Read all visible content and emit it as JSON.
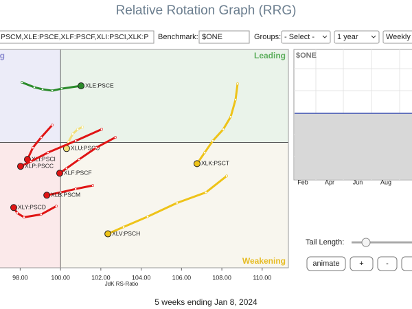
{
  "header": {
    "title": "Relative Rotation Graph (RRG)"
  },
  "controls": {
    "symbols": "PSCM,XLE:PSCE,XLF:PSCF,XLI:PSCI,XLK:P",
    "benchmark_label": "Benchmark:",
    "benchmark": "$ONE",
    "groups_label": "Groups:",
    "groups": "- Select -",
    "period": "1 year",
    "frequency": "Weekly"
  },
  "chart_data": {
    "type": "scatter",
    "xlabel": "JdK RS-Ratio",
    "quadrants": {
      "leading": "Leading",
      "weakening": "Weakening",
      "improving": "Improving"
    },
    "xlim": [
      97,
      111.3
    ],
    "ylim": [
      93.8,
      104.6
    ],
    "xticks": [
      {
        "value": 98,
        "label": "98.00"
      },
      {
        "value": 100,
        "label": "100.00"
      },
      {
        "value": 102,
        "label": "102.00"
      },
      {
        "value": 104,
        "label": "104.00"
      },
      {
        "value": 106,
        "label": "106.00"
      },
      {
        "value": 108,
        "label": "108.00"
      },
      {
        "value": 110,
        "label": "110.00"
      }
    ],
    "series": [
      {
        "name": "XLE:PSCE",
        "color": "#2a8a2a",
        "x": [
          98.09,
          98.7,
          99.11,
          99.59,
          100.06,
          101.02
        ],
        "values": [
          102.97,
          102.73,
          102.63,
          102.56,
          102.66,
          102.8
        ]
      },
      {
        "name": "XLK:PSCT",
        "color": "#eec318",
        "x": [
          108.78,
          108.68,
          108.44,
          108.07,
          107.55,
          107.15,
          106.77
        ],
        "values": [
          102.9,
          102.12,
          101.27,
          100.65,
          100.08,
          99.5,
          98.95
        ]
      },
      {
        "name": "XLV:PSCH",
        "color": "#eec318",
        "x": [
          108.24,
          107.21,
          105.78,
          104.32,
          103.13,
          102.35
        ],
        "values": [
          98.34,
          97.53,
          97.01,
          96.33,
          95.82,
          95.48
        ]
      },
      {
        "name": "XLU:PSCU",
        "color": "#f3df78",
        "x": [
          101.09,
          100.85,
          100.61,
          100.4,
          100.3
        ],
        "values": [
          100.76,
          100.65,
          100.42,
          100.04,
          99.7
        ]
      },
      {
        "name": "XLF:PSCF",
        "color": "#e01414",
        "x": [
          102.72,
          101.77,
          100.92,
          100.3,
          99.96
        ],
        "values": [
          100.25,
          99.74,
          99.16,
          98.72,
          98.48
        ]
      },
      {
        "name": "XLI:PSCI",
        "color": "#e01414",
        "x": [
          99.59,
          99.04,
          98.63,
          98.36
        ],
        "values": [
          100.86,
          100.25,
          99.74,
          99.16
        ]
      },
      {
        "name": "XLP:PSCC",
        "color": "#e01414",
        "x": [
          102.04,
          100.75,
          99.38,
          98.53,
          98.02
        ],
        "values": [
          100.65,
          100.08,
          99.5,
          99.06,
          98.82
        ]
      },
      {
        "name": "XLB:PSCM",
        "color": "#e01414",
        "x": [
          101.6,
          100.75,
          100.0,
          99.32
        ],
        "values": [
          97.87,
          97.7,
          97.53,
          97.39
        ]
      },
      {
        "name": "XLY:PSCD",
        "color": "#e01414",
        "x": [
          99.79,
          99.04,
          98.19,
          97.85,
          97.68
        ],
        "values": [
          96.85,
          96.44,
          96.3,
          96.51,
          96.78
        ]
      }
    ]
  },
  "mini_chart": {
    "label": "$ONE",
    "months": [
      "Feb",
      "Apr",
      "Jun",
      "Aug"
    ]
  },
  "tail_length_label": "Tail Length:",
  "buttons": [
    "animate",
    "+",
    "-"
  ],
  "footer": "5 weeks ending Jan 8, 2024"
}
